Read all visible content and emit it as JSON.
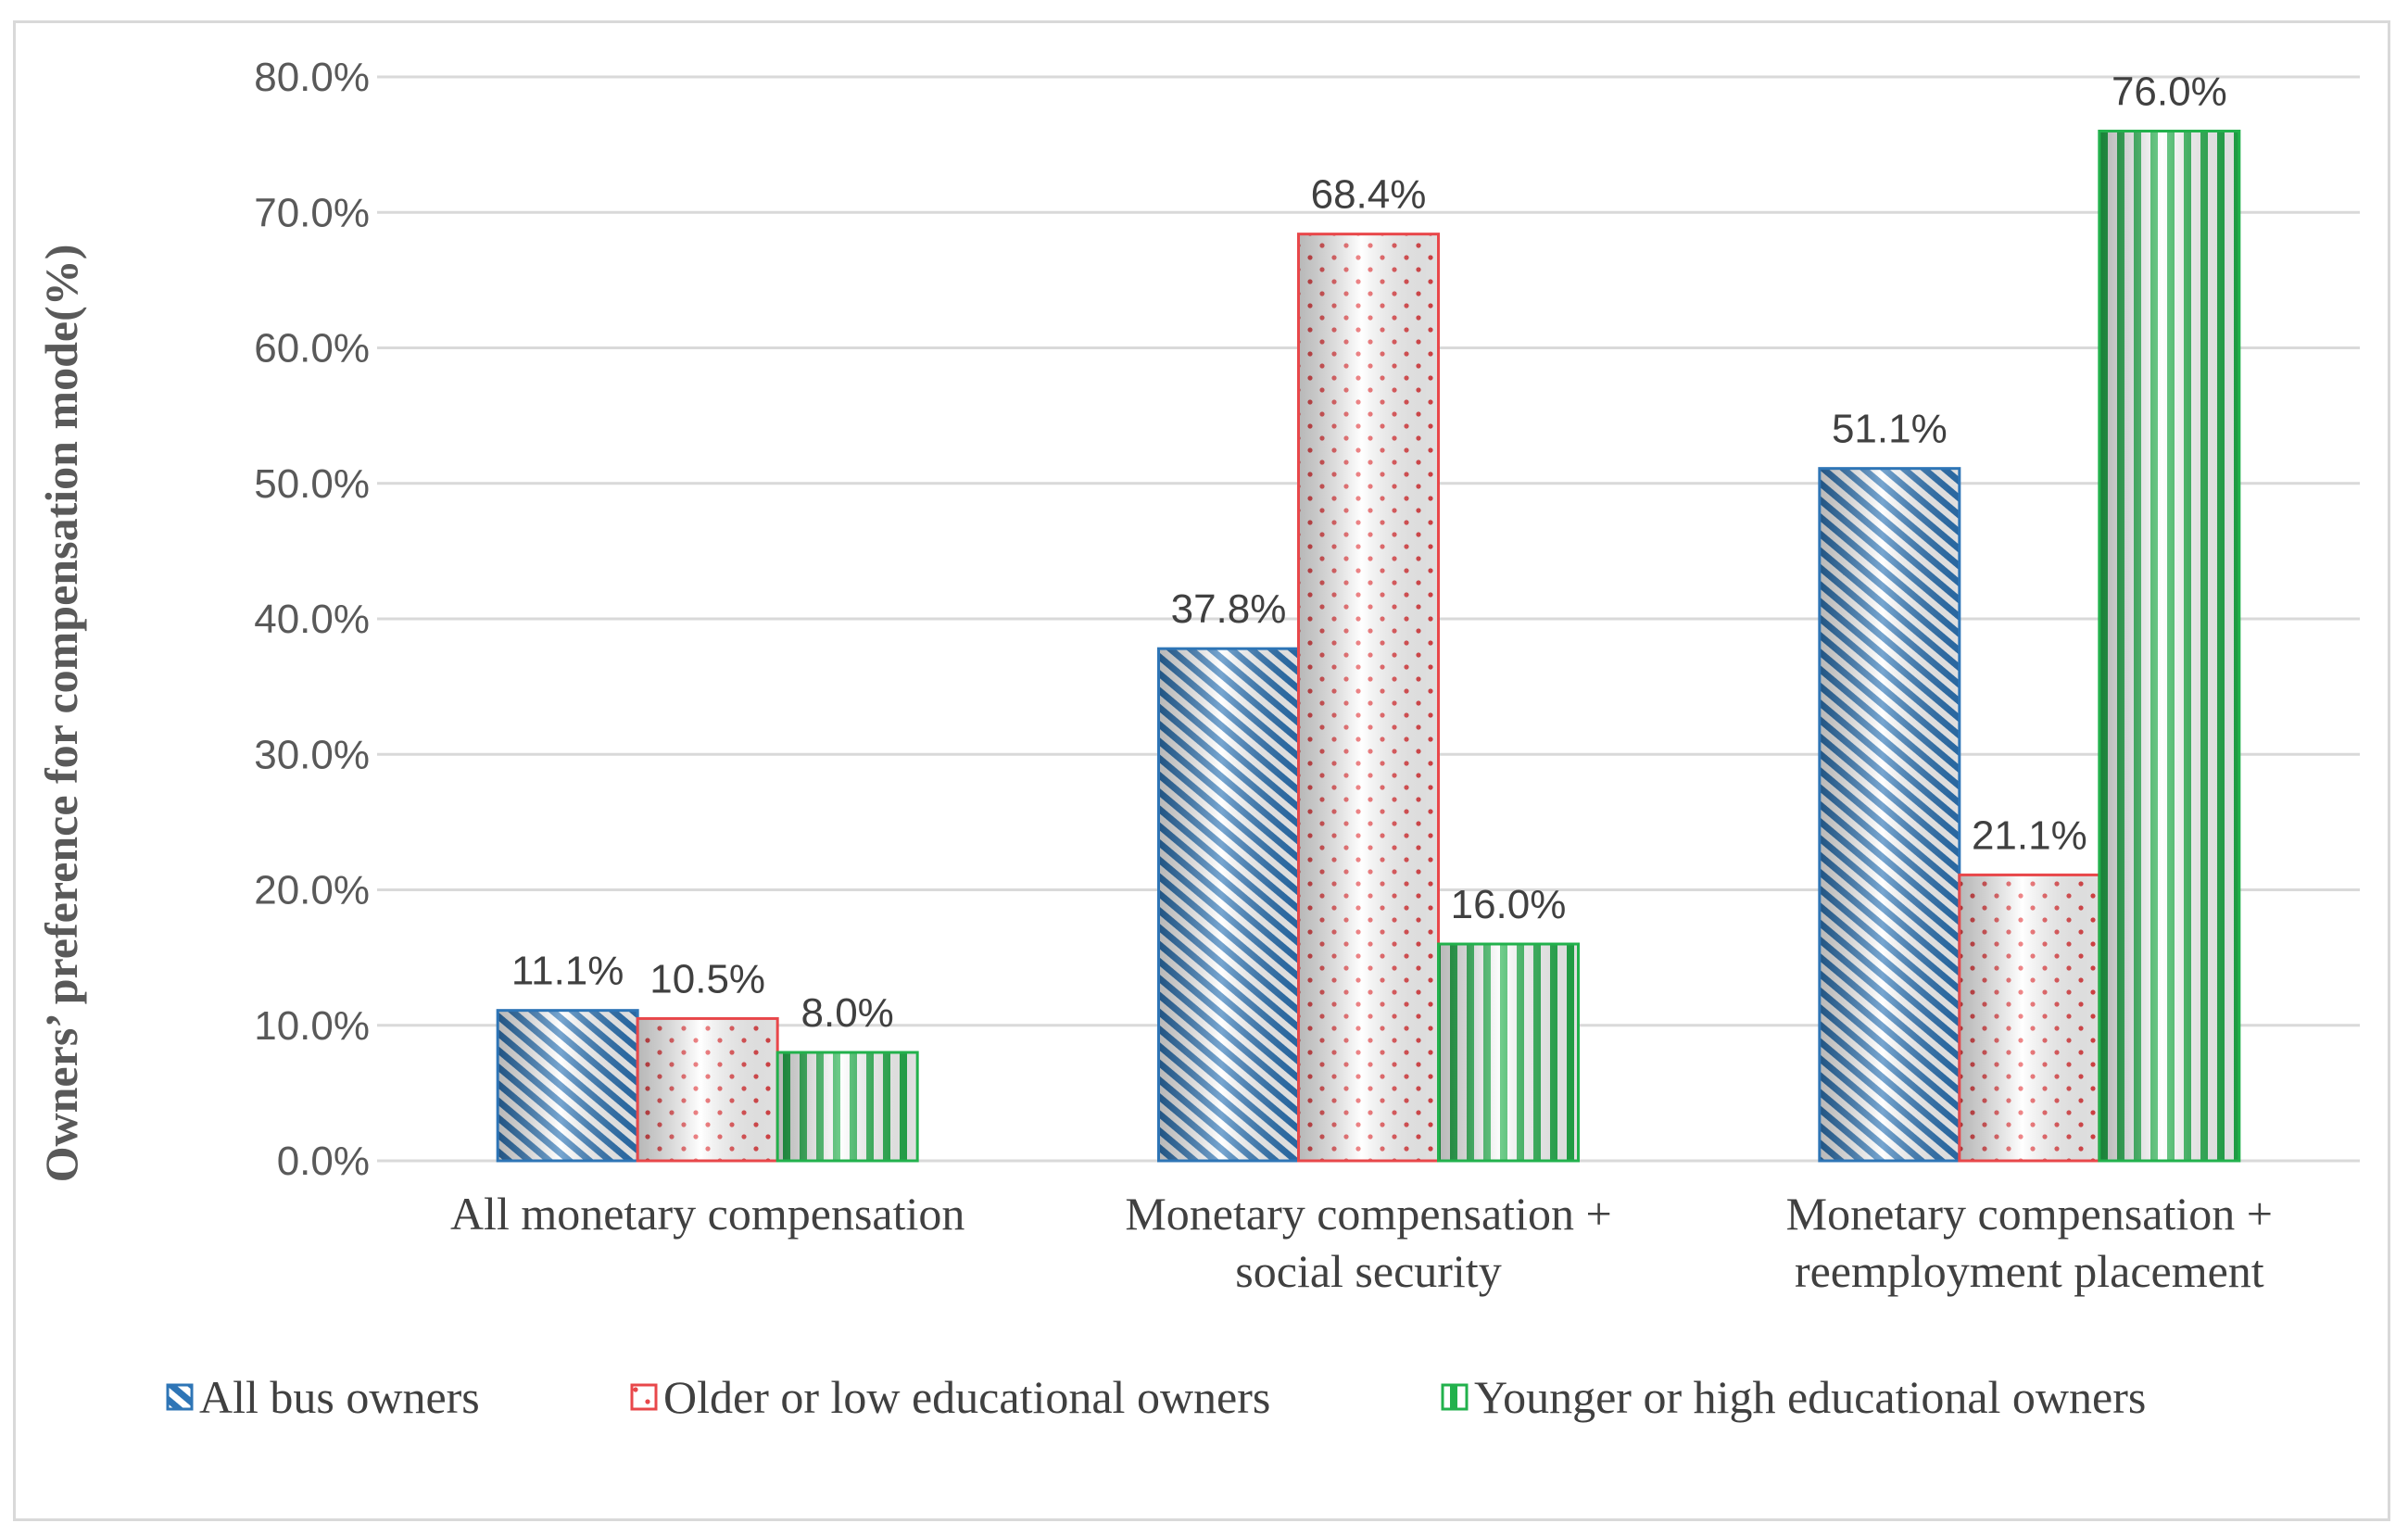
{
  "chart_data": {
    "type": "bar",
    "title": "",
    "xlabel": "",
    "ylabel": "Owners’ preference for compensation mode(%)",
    "ylim": [
      0,
      80
    ],
    "y_tick_step": 10,
    "y_ticks": [
      "0.0%",
      "10.0%",
      "20.0%",
      "30.0%",
      "40.0%",
      "50.0%",
      "60.0%",
      "70.0%",
      "80.0%"
    ],
    "grid": true,
    "legend_position": "bottom",
    "categories": [
      [
        "All monetary compensation"
      ],
      [
        "Monetary compensation +",
        "social security"
      ],
      [
        "Monetary compensation +",
        "reemployment placement"
      ]
    ],
    "series": [
      {
        "name": "All bus owners",
        "values": [
          11.1,
          37.8,
          51.1
        ],
        "labels": [
          "11.1%",
          "37.8%",
          "51.1%"
        ],
        "color": "#2e75b6",
        "pattern": "diagonal"
      },
      {
        "name": "Older or low educational owners",
        "values": [
          10.5,
          68.4,
          21.1
        ],
        "labels": [
          "10.5%",
          "68.4%",
          "21.1%"
        ],
        "color": "#e8474a",
        "pattern": "dots"
      },
      {
        "name": "Younger or high educational  owners",
        "values": [
          8.0,
          16.0,
          76.0
        ],
        "labels": [
          "8.0%",
          "16.0%",
          "76.0%"
        ],
        "color": "#22b14c",
        "pattern": "vertical"
      }
    ]
  }
}
